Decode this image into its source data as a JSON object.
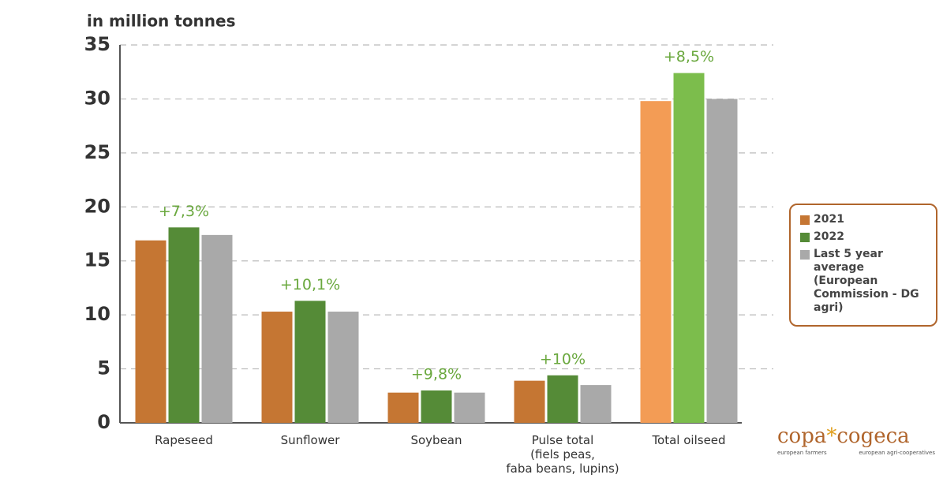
{
  "chart_data": {
    "type": "bar",
    "y_label": "in million tonnes",
    "categories": [
      "Rapeseed",
      "Sunflower",
      "Soybean",
      "Pulse total\n(fiels peas,\nfaba beans, lupins)",
      "Total oilseed"
    ],
    "series": [
      {
        "name": "2021",
        "color": "#c57633",
        "colors": [
          "#c57633",
          "#c57633",
          "#c57633",
          "#c57633",
          "#f39c55"
        ],
        "values": [
          16.9,
          10.3,
          2.8,
          3.9,
          29.8
        ]
      },
      {
        "name": "2022",
        "color": "#558b37",
        "colors": [
          "#558b37",
          "#558b37",
          "#558b37",
          "#558b37",
          "#7cbd4c"
        ],
        "values": [
          18.1,
          11.3,
          3.0,
          4.4,
          32.4
        ]
      },
      {
        "name": "Last 5 year average (European Commission - DG agri)",
        "color": "#a9a9a9",
        "colors": [
          "#a9a9a9",
          "#a9a9a9",
          "#a9a9a9",
          "#a9a9a9",
          "#a9a9a9"
        ],
        "values": [
          17.4,
          10.3,
          2.8,
          3.5,
          30.0
        ]
      }
    ],
    "group_labels": [
      "+7,3%",
      "+10,1%",
      "+9,8%",
      "+10%",
      "+8,5%"
    ],
    "group_label_color": "#6aa83e",
    "ylim": [
      0,
      35
    ],
    "yticks": [
      0,
      5,
      10,
      15,
      20,
      25,
      30,
      35
    ],
    "grid": true
  },
  "logo": {
    "left": "copa",
    "star": "*",
    "right": "cogeca",
    "left_sub": "european farmers",
    "right_sub": "european agri-cooperatives"
  }
}
